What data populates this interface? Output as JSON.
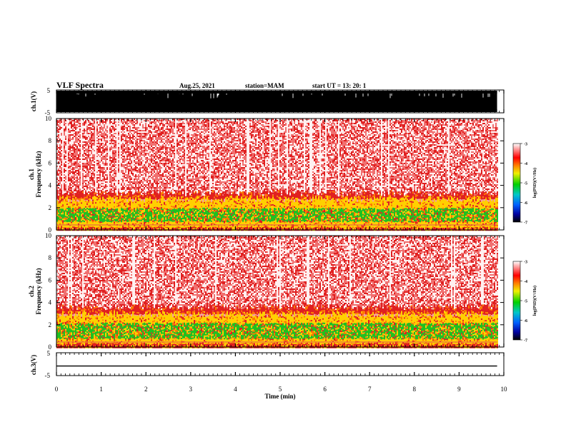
{
  "header": {
    "title": "VLF Spectra",
    "date": "Aug.25, 2021",
    "station": "station=MAM",
    "start_time": "start  UT =   13: 20: 1"
  },
  "colors": {
    "background": "#ffffff",
    "waveform": "#000000",
    "spectrum_high": "#e02020",
    "spectrum_mid": "#ffd000",
    "spectrum_low": "#20c020"
  },
  "chart_data": [
    {
      "type": "area",
      "name": "ch1-waveform",
      "ylabel": "ch.1(V)",
      "ylim": [
        -5,
        5
      ],
      "yticks": [
        "5",
        "-5"
      ],
      "xlim": [
        0,
        10
      ]
    },
    {
      "type": "heatmap",
      "name": "ch1-spectrogram",
      "ylabel_line1": "ch.1",
      "ylabel_line2": "Frequency  (kHz)",
      "ylim": [
        0,
        10
      ],
      "yticks": [
        "10",
        "8",
        "6",
        "4",
        "2",
        "0"
      ],
      "xlim": [
        0,
        10
      ],
      "data_end_min": 9.85,
      "bands_khz": {
        "green_core": [
          0.8,
          2.0
        ],
        "yellow_band": [
          0.3,
          2.8
        ],
        "red_band_top": 3.0
      },
      "colorbar": {
        "label": "log(PSD)(V²/Hz)",
        "range": [
          -7,
          -3
        ],
        "ticks": [
          "-3",
          "-4",
          "-5",
          "-6",
          "-7"
        ]
      }
    },
    {
      "type": "heatmap",
      "name": "ch2-spectrogram",
      "ylabel_line1": "ch.2",
      "ylabel_line2": "Frequency  (kHz)",
      "ylim": [
        0,
        10
      ],
      "yticks": [
        "10",
        "8",
        "6",
        "4",
        "2",
        "0"
      ],
      "xlim": [
        0,
        10
      ],
      "data_end_min": 9.85,
      "bands_khz": {
        "green_core": [
          0.8,
          2.2
        ],
        "yellow_band": [
          0.4,
          3.0
        ],
        "red_band_top": 3.3
      },
      "colorbar": {
        "label": "log(PSD)(V²/Hz)",
        "range": [
          -7,
          -3
        ],
        "ticks": [
          "-3",
          "-4",
          "-5",
          "-6",
          "-7"
        ]
      }
    },
    {
      "type": "line",
      "name": "ch3-waveform",
      "ylabel": "ch.3(V)",
      "ylim": [
        -5,
        5
      ],
      "yticks": [
        "5",
        "-5"
      ],
      "xlim": [
        0,
        10
      ],
      "level_v": -0.8
    }
  ],
  "xaxis": {
    "label": "Time  (min)",
    "ticks": [
      "0",
      "1",
      "2",
      "3",
      "4",
      "5",
      "6",
      "7",
      "8",
      "9",
      "10"
    ]
  }
}
